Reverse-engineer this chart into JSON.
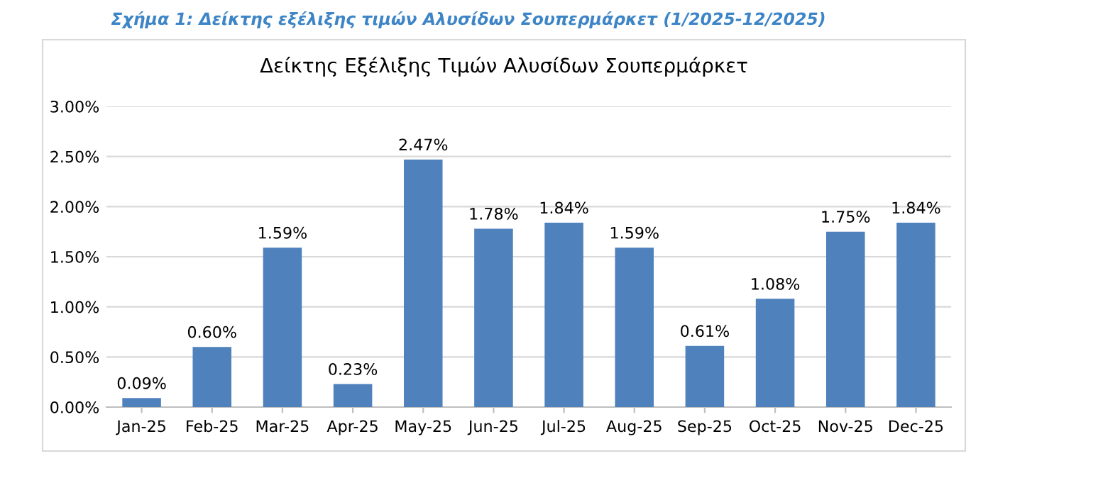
{
  "chart_data": {
    "type": "bar",
    "title": "Δείκτης Εξέλιξης Τιμών Αλυσίδων Σουπερμάρκετ",
    "annotations": [
      "Σχήμα 1: Δείκτης εξέλιξης τιμών Αλυσίδων Σουπερμάρκετ (1/2025-12/2025)"
    ],
    "categories": [
      "Jan-25",
      "Feb-25",
      "Mar-25",
      "Apr-25",
      "May-25",
      "Jun-25",
      "Jul-25",
      "Aug-25",
      "Sep-25",
      "Oct-25",
      "Nov-25",
      "Dec-25"
    ],
    "values": [
      0.09,
      0.6,
      1.59,
      0.23,
      2.47,
      1.78,
      1.84,
      1.59,
      0.61,
      1.08,
      1.75,
      1.84
    ],
    "value_labels": [
      "0.09%",
      "0.60%",
      "1.59%",
      "0.23%",
      "2.47%",
      "1.78%",
      "1.84%",
      "1.59%",
      "0.61%",
      "1.08%",
      "1.75%",
      "1.84%"
    ],
    "color": "#4f81bd",
    "ylim": [
      0,
      3
    ],
    "yticks": [
      {
        "value": 0,
        "label": "0.00%"
      },
      {
        "value": 0.5,
        "label": "0.50%"
      },
      {
        "value": 1,
        "label": "1.00%"
      },
      {
        "value": 1.5,
        "label": "1.50%"
      },
      {
        "value": 2,
        "label": "2.00%"
      },
      {
        "value": 2.5,
        "label": "2.50%"
      },
      {
        "value": 3,
        "label": "3.00%"
      }
    ],
    "grid": "y",
    "legend": false
  }
}
